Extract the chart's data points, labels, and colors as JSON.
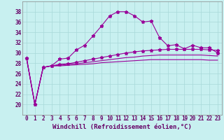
{
  "xlabel": "Windchill (Refroidissement éolien,°C)",
  "bg_color": "#c8f0f0",
  "grid_color": "#a8d8d8",
  "line_color": "#990099",
  "x_hours": [
    0,
    1,
    2,
    3,
    4,
    5,
    6,
    7,
    8,
    9,
    10,
    11,
    12,
    13,
    14,
    15,
    16,
    17,
    18,
    19,
    20,
    21,
    22,
    23
  ],
  "x_labels": [
    "0",
    "1",
    "2",
    "3",
    "4",
    "5",
    "6",
    "7",
    "8",
    "9",
    "10",
    "11",
    "12",
    "13",
    "14",
    "15",
    "16",
    "17",
    "18",
    "19",
    "20",
    "21",
    "22",
    "23"
  ],
  "series_temp": [
    29.0,
    20.0,
    27.2,
    27.5,
    28.8,
    29.0,
    30.6,
    31.5,
    33.3,
    35.2,
    37.2,
    38.0,
    38.0,
    37.2,
    36.0,
    36.2,
    33.0,
    31.4,
    31.6,
    30.8,
    31.5,
    31.0,
    31.0,
    30.0
  ],
  "series_wc1": [
    29.0,
    20.0,
    27.2,
    27.5,
    27.8,
    27.9,
    28.2,
    28.5,
    28.8,
    29.1,
    29.4,
    29.7,
    30.0,
    30.2,
    30.4,
    30.5,
    30.6,
    30.7,
    30.7,
    30.7,
    30.7,
    30.7,
    30.6,
    30.5
  ],
  "series_wc2": [
    29.0,
    20.0,
    27.2,
    27.5,
    27.6,
    27.8,
    27.9,
    28.1,
    28.3,
    28.5,
    28.7,
    28.9,
    29.1,
    29.2,
    29.4,
    29.5,
    29.6,
    29.6,
    29.6,
    29.6,
    29.6,
    29.6,
    29.5,
    29.4
  ],
  "series_wc3": [
    29.0,
    20.0,
    27.2,
    27.5,
    27.5,
    27.6,
    27.7,
    27.8,
    27.9,
    28.1,
    28.2,
    28.3,
    28.4,
    28.5,
    28.6,
    28.7,
    28.7,
    28.7,
    28.7,
    28.7,
    28.7,
    28.7,
    28.6,
    28.6
  ],
  "ylim": [
    18,
    40
  ],
  "yticks": [
    20,
    22,
    24,
    26,
    28,
    30,
    32,
    34,
    36,
    38
  ],
  "markersize": 2.5,
  "linewidth": 0.8,
  "tick_fontsize": 5.5,
  "xlabel_fontsize": 6.5
}
